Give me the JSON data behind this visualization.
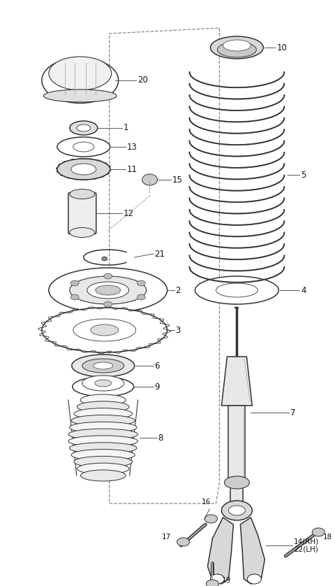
{
  "bg_color": "#ffffff",
  "line_color": "#333333",
  "label_color": "#111111",
  "fig_w": 4.8,
  "fig_h": 8.38,
  "dpi": 100,
  "xlim": [
    0,
    480
  ],
  "ylim": [
    0,
    838
  ]
}
